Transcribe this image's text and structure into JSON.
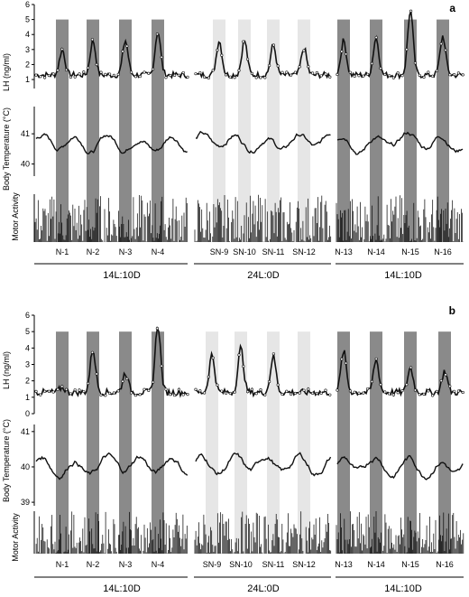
{
  "panels": [
    {
      "id": "a",
      "label": "a",
      "lh_axis": {
        "label": "LH (ng/ml)",
        "ticks": [
          1,
          2,
          3,
          4,
          5,
          6
        ],
        "range": [
          0.4,
          6
        ]
      },
      "temp_axis": {
        "label": "Body Temperature (°C)",
        "ticks": [
          40,
          41
        ],
        "range": [
          39.6,
          41.9
        ]
      },
      "activity_label": "Motor Activity",
      "nights_left": [
        "N-1",
        "N-2",
        "N-3",
        "N-4"
      ],
      "nights_mid": [
        "SN-9",
        "SN-10",
        "SN-11",
        "SN-12"
      ],
      "nights_right": [
        "N-13",
        "N-14",
        "N-15",
        "N-16"
      ],
      "conditions": [
        "14L:10D",
        "24L:0D",
        "14L:10D"
      ],
      "lh_peaks_left": [
        3.0,
        3.6,
        3.6,
        4.2
      ],
      "lh_peaks_mid": [
        3.6,
        3.6,
        3.3,
        3.1
      ],
      "lh_peaks_right": [
        3.6,
        3.8,
        5.6,
        3.9
      ]
    },
    {
      "id": "b",
      "label": "b",
      "lh_axis": {
        "label": "LH (ng/ml)",
        "ticks": [
          0,
          1,
          2,
          3,
          4,
          5,
          6
        ],
        "range": [
          0,
          6
        ]
      },
      "temp_axis": {
        "label": "Body Temperature (°C)",
        "ticks": [
          39,
          40,
          41
        ],
        "range": [
          38.9,
          41.2
        ]
      },
      "activity_label": "Motor Activity",
      "nights_left": [
        "N-1",
        "N-2",
        "N-3",
        "N-4"
      ],
      "nights_mid": [
        "SN-9",
        "SN-10",
        "SN-11",
        "SN-12"
      ],
      "nights_right": [
        "N-13",
        "N-14",
        "N-15",
        "N-16"
      ],
      "conditions": [
        "14L:10D",
        "24L:0D",
        "14L:10D"
      ],
      "lh_peaks_left": [
        1.6,
        3.9,
        2.5,
        5.4
      ],
      "lh_peaks_mid": [
        3.6,
        4.0,
        3.5
      ],
      "lh_peaks_right": [
        3.8,
        3.3,
        2.8,
        2.6
      ]
    }
  ],
  "colors": {
    "dark_band": "#8a8a8a",
    "light_band": "#e6e6e6",
    "trace": "#111111"
  }
}
